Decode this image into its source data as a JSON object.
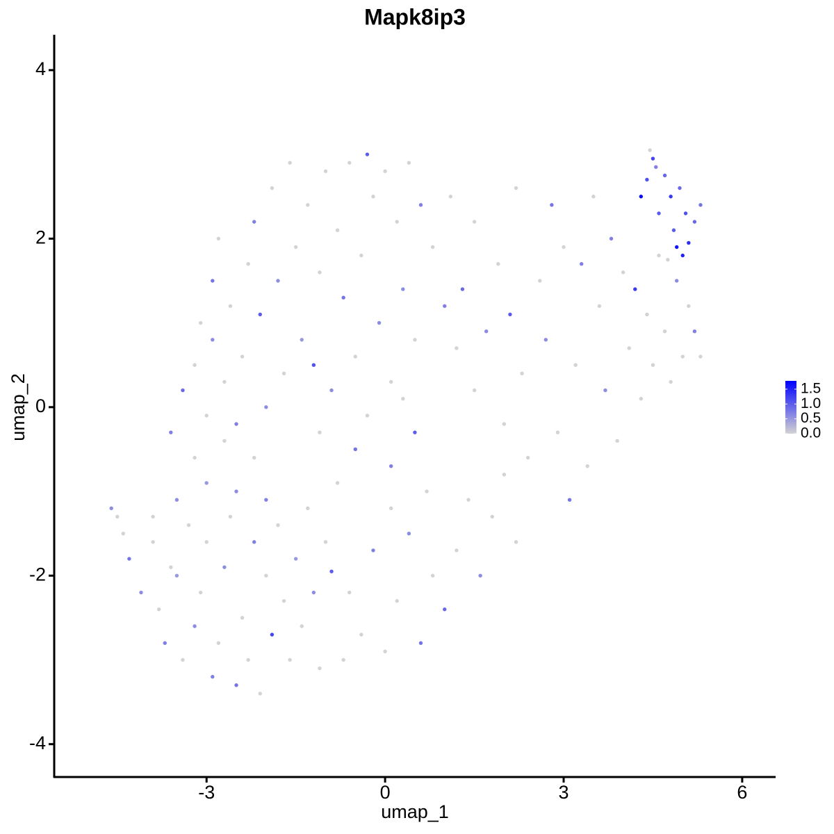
{
  "chart_data": {
    "type": "scatter",
    "title": "Mapk8ip3",
    "x_label": "umap_1",
    "y_label": "umap_2",
    "xlim": [
      -5.56,
      6.55
    ],
    "ylim": [
      -4.39,
      4.42
    ],
    "xticks": [
      -3,
      0,
      3,
      6
    ],
    "yticks": [
      -4,
      -2,
      0,
      2,
      4
    ],
    "colorbar": {
      "low_color": "#d3d3d3",
      "high_color": "#0000ff",
      "lim": [
        0,
        1.78
      ],
      "ticks": [
        {
          "value": 0,
          "label": "0.0"
        },
        {
          "value": 0.5,
          "label": "0.5"
        },
        {
          "value": 1,
          "label": "1.0"
        },
        {
          "value": 1.5,
          "label": "1.5"
        }
      ]
    },
    "x": [
      -4.6,
      -4.5,
      -4.4,
      -4.3,
      -4.1,
      -3.9,
      -3.8,
      -3.7,
      -3.6,
      -3.5,
      -3.4,
      -3.3,
      -3.2,
      -3.1,
      -3.0,
      -2.9,
      -2.8,
      -2.7,
      -2.6,
      -2.5,
      -2.4,
      -2.3,
      -2.2,
      -2.1,
      -2.0,
      -1.9,
      -1.8,
      -1.7,
      -1.6,
      -1.5,
      -1.4,
      -1.3,
      -1.2,
      -1.1,
      -1.0,
      -0.9,
      -3.9,
      -3.5,
      -3.2,
      -3.0,
      -2.7,
      -2.5,
      -2.2,
      -2.0,
      -3.6,
      -3.4,
      -3.2,
      -3.0,
      -2.9,
      -2.7,
      -2.6,
      -2.5,
      -2.4,
      -2.3,
      -2.2,
      -2.1,
      -2.0,
      -1.9,
      -1.8,
      -1.7,
      -1.6,
      -1.5,
      -1.4,
      -1.3,
      -1.2,
      -1.1,
      -1.0,
      -0.9,
      -0.8,
      -0.7,
      -0.6,
      -0.5,
      -0.4,
      -0.3,
      -0.2,
      -0.1,
      0.0,
      0.1,
      0.2,
      0.3,
      0.4,
      0.5,
      0.6,
      0.8,
      -2.8,
      -2.9,
      -3.1,
      -0.5,
      -0.3,
      0.1,
      0.3,
      0.5,
      0.7,
      -0.8,
      -1.1,
      -0.6,
      -0.4,
      -0.2,
      0.0,
      0.2,
      0.4,
      0.6,
      0.8,
      1.0,
      1.2,
      1.4,
      1.6,
      1.8,
      2.0,
      2.2,
      -0.7,
      0.1,
      1.0,
      1.2,
      1.3,
      1.5,
      1.7,
      1.9,
      2.0,
      2.1,
      2.3,
      2.4,
      2.6,
      2.7,
      2.8,
      2.9,
      3.0,
      3.1,
      3.2,
      3.3,
      3.4,
      3.5,
      3.6,
      3.7,
      3.8,
      3.9,
      4.0,
      4.1,
      4.2,
      4.3,
      4.4,
      4.5,
      4.6,
      4.7,
      4.8,
      4.9,
      5.0,
      5.1,
      5.2,
      5.3,
      2.2,
      1.5,
      1.1,
      4.3,
      4.4,
      4.5,
      4.6,
      4.7,
      4.8,
      4.85,
      4.9,
      5.0,
      5.05,
      5.1,
      5.2,
      5.3,
      4.95,
      4.55,
      4.45,
      4.75
    ],
    "y": [
      -1.2,
      -1.3,
      -1.5,
      -1.8,
      -2.2,
      -1.6,
      -2.4,
      -2.8,
      -1.9,
      -2.0,
      -3.0,
      -1.4,
      -2.6,
      -2.2,
      -1.6,
      -3.2,
      -2.8,
      -1.9,
      -1.3,
      -3.3,
      -2.5,
      -3.0,
      -1.6,
      -3.4,
      -2.0,
      -2.7,
      -1.4,
      -2.3,
      -3.0,
      -1.8,
      -2.6,
      -1.2,
      -2.2,
      -3.1,
      -1.6,
      -1.95,
      -1.3,
      -1.1,
      -0.6,
      -0.9,
      -0.4,
      -1.0,
      -0.6,
      -1.1,
      -0.3,
      0.2,
      0.5,
      -0.1,
      0.8,
      0.3,
      1.2,
      -0.2,
      0.6,
      1.7,
      2.2,
      1.1,
      0.0,
      2.6,
      1.5,
      0.4,
      2.9,
      1.9,
      0.8,
      2.4,
      0.5,
      1.6,
      2.8,
      0.2,
      2.1,
      1.3,
      2.9,
      0.6,
      1.8,
      3.0,
      2.5,
      1.0,
      2.8,
      0.3,
      2.2,
      1.4,
      2.9,
      0.8,
      2.4,
      1.9,
      2.0,
      1.5,
      1.0,
      -0.5,
      -0.1,
      -0.7,
      0.1,
      -0.3,
      -1.0,
      -0.9,
      -0.3,
      -2.2,
      -2.7,
      -1.7,
      -2.9,
      -2.3,
      -1.5,
      -2.8,
      -2.0,
      -2.4,
      -1.7,
      -1.1,
      -2.0,
      -1.3,
      -0.8,
      -1.6,
      -3.0,
      -1.2,
      1.2,
      0.7,
      1.4,
      0.2,
      0.9,
      1.7,
      -0.2,
      1.1,
      0.4,
      -0.6,
      1.5,
      0.8,
      2.4,
      -0.3,
      1.9,
      -1.1,
      0.5,
      1.7,
      -0.7,
      2.5,
      1.2,
      0.2,
      2.0,
      -0.4,
      1.6,
      0.7,
      1.4,
      0.1,
      1.1,
      0.5,
      1.8,
      0.9,
      0.3,
      1.5,
      0.6,
      1.2,
      0.9,
      0.6,
      2.6,
      2.2,
      2.5,
      2.5,
      2.7,
      2.95,
      2.3,
      2.75,
      2.5,
      2.1,
      1.9,
      1.8,
      2.3,
      1.95,
      2.2,
      2.4,
      2.6,
      2.85,
      3.05,
      1.75
    ],
    "values": [
      0.6,
      0,
      0,
      0.8,
      0.6,
      0,
      0,
      0.7,
      0,
      0.5,
      0,
      0,
      0.6,
      0,
      0,
      0.7,
      0,
      0.6,
      0,
      0.8,
      0,
      0,
      0.7,
      0,
      0,
      1.2,
      0,
      0,
      0,
      0.5,
      0,
      0,
      0.6,
      0,
      0,
      1.0,
      0,
      0.6,
      0,
      0.5,
      0,
      0.6,
      0,
      0.7,
      0.7,
      0.9,
      0,
      0,
      0.6,
      0,
      0,
      0.7,
      0,
      0,
      0.7,
      1.0,
      0.6,
      0,
      0.6,
      0,
      0,
      0,
      0.5,
      0,
      1.1,
      0,
      0,
      0.6,
      0,
      0.8,
      0,
      0,
      0,
      1.0,
      0,
      0.6,
      0,
      0,
      0,
      0.6,
      0,
      0,
      0.7,
      0,
      0,
      0.8,
      0,
      0.8,
      0,
      0.7,
      0,
      1.0,
      0,
      0,
      0,
      0,
      0,
      0.7,
      0,
      0,
      0.6,
      0.8,
      0,
      0.9,
      0,
      0,
      0.6,
      0,
      0,
      0,
      0,
      0,
      0.7,
      0,
      0.9,
      0,
      0.6,
      0,
      0,
      1.0,
      0,
      0,
      0,
      0.6,
      0.8,
      0,
      0,
      0.8,
      0,
      0.7,
      0,
      0,
      0,
      0.6,
      0.7,
      0,
      0,
      0,
      1.3,
      0,
      0,
      0,
      0,
      0,
      0,
      0.6,
      0,
      0,
      0.7,
      0,
      0,
      0,
      0,
      1.7,
      1.1,
      1.2,
      1.0,
      0.9,
      1.3,
      1.0,
      1.6,
      1.5,
      1.1,
      1.4,
      0.9,
      0.8,
      0.9,
      0.7,
      0,
      0
    ]
  }
}
